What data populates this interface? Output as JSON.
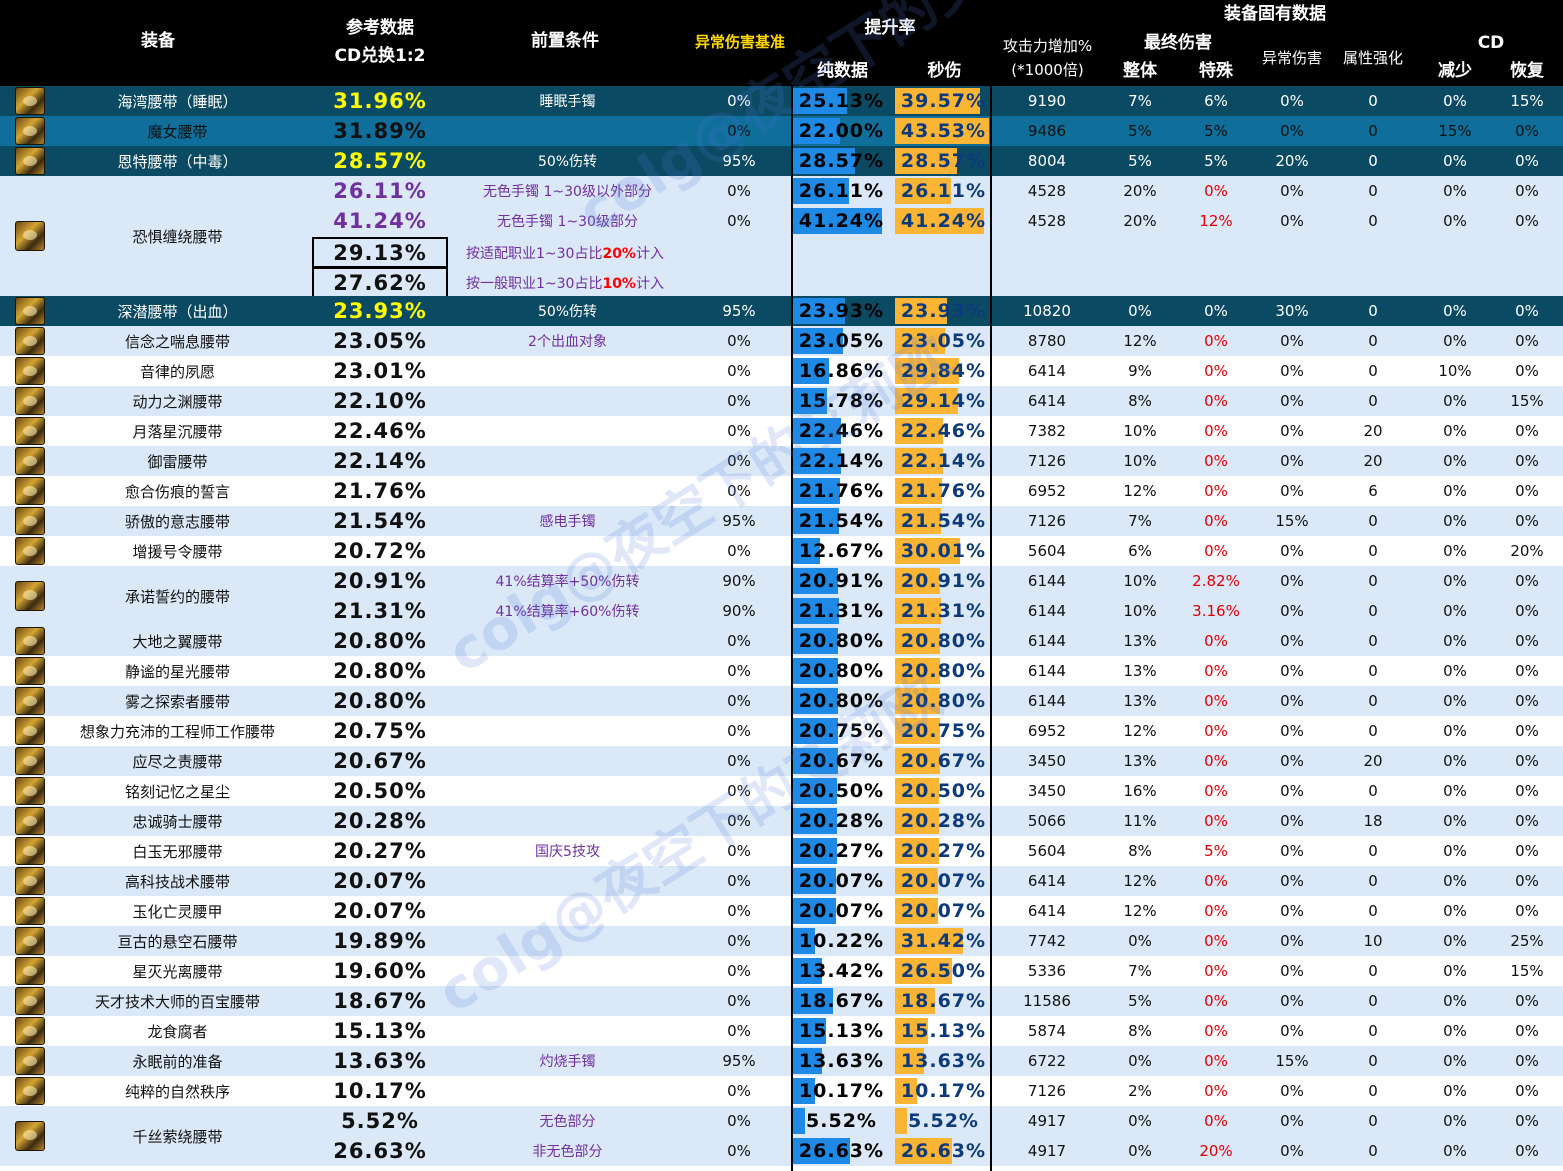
{
  "headers": {
    "equip": "装备",
    "ref_line1": "参考数据",
    "ref_line2": "CD兑换1:2",
    "pre": "前置条件",
    "abn_base": "异常伤害基准",
    "boost": "提升率",
    "pure": "纯数据",
    "sec": "秒伤",
    "atk_line1": "攻击力增加%",
    "atk_line2": "(*1000倍)",
    "inherent": "装备固有数据",
    "final": "最终伤害",
    "overall": "整体",
    "special": "特殊",
    "abn_dmg": "异常伤害",
    "elem": "属性强化",
    "cd": "CD",
    "cd_reduce": "减少",
    "cd_recover": "恢复"
  },
  "rows": [
    {
      "name": "海湾腰带（睡眠）",
      "ref": "31.96%",
      "cond": "睡眠手镯",
      "abn": "0%",
      "pure": "25.13%",
      "sec": "39.57%",
      "pure_v": 25.13,
      "sec_v": 39.57,
      "atk": "9190",
      "overall": "7%",
      "special": "6%",
      "abdmg": "0%",
      "elem": "0",
      "cdr": "0%",
      "rec": "15%",
      "style": "dark"
    },
    {
      "name": "魔女腰带",
      "ref": "31.89%",
      "cond": "",
      "abn": "0%",
      "pure": "22.00%",
      "sec": "43.53%",
      "pure_v": 22.0,
      "sec_v": 43.53,
      "atk": "9486",
      "overall": "5%",
      "special": "5%",
      "abdmg": "0%",
      "elem": "0",
      "cdr": "15%",
      "rec": "0%",
      "style": "mid"
    },
    {
      "name": "恩特腰带（中毒）",
      "ref": "28.57%",
      "cond": "50%伤转",
      "abn": "95%",
      "pure": "28.57%",
      "sec": "28.57%",
      "pure_v": 28.57,
      "sec_v": 28.57,
      "atk": "8004",
      "overall": "5%",
      "special": "5%",
      "abdmg": "20%",
      "elem": "0",
      "cdr": "0%",
      "rec": "0%",
      "style": "dark"
    }
  ],
  "group_kongju": {
    "name": "恐惧缠绕腰带",
    "sub": [
      {
        "ref": "26.11%",
        "cond": "无色手镯 1~30级以外部分",
        "abn": "0%",
        "pure": "26.11%",
        "sec": "26.11%",
        "pure_v": 26.11,
        "sec_v": 26.11,
        "atk": "4528",
        "overall": "20%",
        "special": "0%",
        "abdmg": "0%",
        "elem": "0",
        "cdr": "0%",
        "rec": "0%"
      },
      {
        "ref": "41.24%",
        "cond": "无色手镯 1~30级部分",
        "abn": "0%",
        "pure": "41.24%",
        "sec": "41.24%",
        "pure_v": 41.24,
        "sec_v": 41.24,
        "atk": "4528",
        "overall": "20%",
        "special": "12%",
        "abdmg": "0%",
        "elem": "0",
        "cdr": "0%",
        "rec": "0%"
      }
    ],
    "boxed": [
      {
        "val": "29.13%",
        "note_pre": "按适配职业1~30占比",
        "note_bold": "20%",
        "note_post": "计入"
      },
      {
        "val": "27.62%",
        "note_pre": "按一般职业1~30占比",
        "note_bold": "10%",
        "note_post": "计入"
      }
    ]
  },
  "rows2": [
    {
      "name": "深潜腰带（出血）",
      "ref": "23.93%",
      "cond": "50%伤转",
      "abn": "95%",
      "pure": "23.93%",
      "sec": "23.93%",
      "pure_v": 23.93,
      "sec_v": 23.93,
      "atk": "10820",
      "overall": "0%",
      "special": "0%",
      "abdmg": "30%",
      "elem": "0",
      "cdr": "0%",
      "rec": "0%",
      "style": "dark"
    },
    {
      "name": "信念之喘息腰带",
      "ref": "23.05%",
      "cond": "2个出血对象",
      "abn": "0%",
      "pure": "23.05%",
      "sec": "23.05%",
      "pure_v": 23.05,
      "sec_v": 23.05,
      "atk": "8780",
      "overall": "12%",
      "special": "0%",
      "abdmg": "0%",
      "elem": "0",
      "cdr": "0%",
      "rec": "0%",
      "style": "light"
    },
    {
      "name": "音律的夙愿",
      "ref": "23.01%",
      "cond": "",
      "abn": "0%",
      "pure": "16.86%",
      "sec": "29.84%",
      "pure_v": 16.86,
      "sec_v": 29.84,
      "atk": "6414",
      "overall": "9%",
      "special": "0%",
      "abdmg": "0%",
      "elem": "0",
      "cdr": "10%",
      "rec": "0%",
      "style": "white"
    },
    {
      "name": "动力之渊腰带",
      "ref": "22.10%",
      "cond": "",
      "abn": "0%",
      "pure": "15.78%",
      "sec": "29.14%",
      "pure_v": 15.78,
      "sec_v": 29.14,
      "atk": "6414",
      "overall": "8%",
      "special": "0%",
      "abdmg": "0%",
      "elem": "0",
      "cdr": "0%",
      "rec": "15%",
      "style": "light"
    },
    {
      "name": "月落星沉腰带",
      "ref": "22.46%",
      "cond": "",
      "abn": "0%",
      "pure": "22.46%",
      "sec": "22.46%",
      "pure_v": 22.46,
      "sec_v": 22.46,
      "atk": "7382",
      "overall": "10%",
      "special": "0%",
      "abdmg": "0%",
      "elem": "20",
      "cdr": "0%",
      "rec": "0%",
      "style": "white"
    },
    {
      "name": "御雷腰带",
      "ref": "22.14%",
      "cond": "",
      "abn": "0%",
      "pure": "22.14%",
      "sec": "22.14%",
      "pure_v": 22.14,
      "sec_v": 22.14,
      "atk": "7126",
      "overall": "10%",
      "special": "0%",
      "abdmg": "0%",
      "elem": "20",
      "cdr": "0%",
      "rec": "0%",
      "style": "light"
    },
    {
      "name": "愈合伤痕的誓言",
      "ref": "21.76%",
      "cond": "",
      "abn": "0%",
      "pure": "21.76%",
      "sec": "21.76%",
      "pure_v": 21.76,
      "sec_v": 21.76,
      "atk": "6952",
      "overall": "12%",
      "special": "0%",
      "abdmg": "0%",
      "elem": "6",
      "cdr": "0%",
      "rec": "0%",
      "style": "white"
    },
    {
      "name": "骄傲的意志腰带",
      "ref": "21.54%",
      "cond": "感电手镯",
      "abn": "95%",
      "pure": "21.54%",
      "sec": "21.54%",
      "pure_v": 21.54,
      "sec_v": 21.54,
      "atk": "7126",
      "overall": "7%",
      "special": "0%",
      "abdmg": "15%",
      "elem": "0",
      "cdr": "0%",
      "rec": "0%",
      "style": "light"
    },
    {
      "name": "增援号令腰带",
      "ref": "20.72%",
      "cond": "",
      "abn": "0%",
      "pure": "12.67%",
      "sec": "30.01%",
      "pure_v": 12.67,
      "sec_v": 30.01,
      "atk": "5604",
      "overall": "6%",
      "special": "0%",
      "abdmg": "0%",
      "elem": "0",
      "cdr": "0%",
      "rec": "20%",
      "style": "white"
    }
  ],
  "group_chengnuo": {
    "name": "承诺誓约的腰带",
    "sub": [
      {
        "ref": "20.91%",
        "cond": "41%结算率+50%伤转",
        "abn": "90%",
        "pure": "20.91%",
        "sec": "20.91%",
        "pure_v": 20.91,
        "sec_v": 20.91,
        "atk": "6144",
        "overall": "10%",
        "special": "2.82%",
        "abdmg": "0%",
        "elem": "0",
        "cdr": "0%",
        "rec": "0%"
      },
      {
        "ref": "21.31%",
        "cond": "41%结算率+60%伤转",
        "abn": "90%",
        "pure": "21.31%",
        "sec": "21.31%",
        "pure_v": 21.31,
        "sec_v": 21.31,
        "atk": "6144",
        "overall": "10%",
        "special": "3.16%",
        "abdmg": "0%",
        "elem": "0",
        "cdr": "0%",
        "rec": "0%"
      }
    ]
  },
  "rows3": [
    {
      "name": "大地之翼腰带",
      "ref": "20.80%",
      "cond": "",
      "abn": "0%",
      "pure": "20.80%",
      "sec": "20.80%",
      "pure_v": 20.8,
      "sec_v": 20.8,
      "atk": "6144",
      "overall": "13%",
      "special": "0%",
      "abdmg": "0%",
      "elem": "0",
      "cdr": "0%",
      "rec": "0%",
      "style": "light"
    },
    {
      "name": "静谧的星光腰带",
      "ref": "20.80%",
      "cond": "",
      "abn": "0%",
      "pure": "20.80%",
      "sec": "20.80%",
      "pure_v": 20.8,
      "sec_v": 20.8,
      "atk": "6144",
      "overall": "13%",
      "special": "0%",
      "abdmg": "0%",
      "elem": "0",
      "cdr": "0%",
      "rec": "0%",
      "style": "white"
    },
    {
      "name": "雾之探索者腰带",
      "ref": "20.80%",
      "cond": "",
      "abn": "0%",
      "pure": "20.80%",
      "sec": "20.80%",
      "pure_v": 20.8,
      "sec_v": 20.8,
      "atk": "6144",
      "overall": "13%",
      "special": "0%",
      "abdmg": "0%",
      "elem": "0",
      "cdr": "0%",
      "rec": "0%",
      "style": "light"
    },
    {
      "name": "想象力充沛的工程师工作腰带",
      "ref": "20.75%",
      "cond": "",
      "abn": "0%",
      "pure": "20.75%",
      "sec": "20.75%",
      "pure_v": 20.75,
      "sec_v": 20.75,
      "atk": "6952",
      "overall": "12%",
      "special": "0%",
      "abdmg": "0%",
      "elem": "0",
      "cdr": "0%",
      "rec": "0%",
      "style": "white"
    },
    {
      "name": "应尽之责腰带",
      "ref": "20.67%",
      "cond": "",
      "abn": "0%",
      "pure": "20.67%",
      "sec": "20.67%",
      "pure_v": 20.67,
      "sec_v": 20.67,
      "atk": "3450",
      "overall": "13%",
      "special": "0%",
      "abdmg": "0%",
      "elem": "20",
      "cdr": "0%",
      "rec": "0%",
      "style": "light"
    },
    {
      "name": "铭刻记忆之星尘",
      "ref": "20.50%",
      "cond": "",
      "abn": "0%",
      "pure": "20.50%",
      "sec": "20.50%",
      "pure_v": 20.5,
      "sec_v": 20.5,
      "atk": "3450",
      "overall": "16%",
      "special": "0%",
      "abdmg": "0%",
      "elem": "0",
      "cdr": "0%",
      "rec": "0%",
      "style": "white"
    },
    {
      "name": "忠诚骑士腰带",
      "ref": "20.28%",
      "cond": "",
      "abn": "0%",
      "pure": "20.28%",
      "sec": "20.28%",
      "pure_v": 20.28,
      "sec_v": 20.28,
      "atk": "5066",
      "overall": "11%",
      "special": "0%",
      "abdmg": "0%",
      "elem": "18",
      "cdr": "0%",
      "rec": "0%",
      "style": "light"
    },
    {
      "name": "白玉无邪腰带",
      "ref": "20.27%",
      "cond": "国庆5技攻",
      "abn": "0%",
      "pure": "20.27%",
      "sec": "20.27%",
      "pure_v": 20.27,
      "sec_v": 20.27,
      "atk": "5604",
      "overall": "8%",
      "special": "5%",
      "abdmg": "0%",
      "elem": "0",
      "cdr": "0%",
      "rec": "0%",
      "style": "white"
    },
    {
      "name": "高科技战术腰带",
      "ref": "20.07%",
      "cond": "",
      "abn": "0%",
      "pure": "20.07%",
      "sec": "20.07%",
      "pure_v": 20.07,
      "sec_v": 20.07,
      "atk": "6414",
      "overall": "12%",
      "special": "0%",
      "abdmg": "0%",
      "elem": "0",
      "cdr": "0%",
      "rec": "0%",
      "style": "light"
    },
    {
      "name": "玉化亡灵腰甲",
      "ref": "20.07%",
      "cond": "",
      "abn": "0%",
      "pure": "20.07%",
      "sec": "20.07%",
      "pure_v": 20.07,
      "sec_v": 20.07,
      "atk": "6414",
      "overall": "12%",
      "special": "0%",
      "abdmg": "0%",
      "elem": "0",
      "cdr": "0%",
      "rec": "0%",
      "style": "white"
    },
    {
      "name": "亘古的悬空石腰带",
      "ref": "19.89%",
      "cond": "",
      "abn": "0%",
      "pure": "10.22%",
      "sec": "31.42%",
      "pure_v": 10.22,
      "sec_v": 31.42,
      "atk": "7742",
      "overall": "0%",
      "special": "0%",
      "abdmg": "0%",
      "elem": "10",
      "cdr": "0%",
      "rec": "25%",
      "style": "light"
    },
    {
      "name": "星灭光离腰带",
      "ref": "19.60%",
      "cond": "",
      "abn": "0%",
      "pure": "13.42%",
      "sec": "26.50%",
      "pure_v": 13.42,
      "sec_v": 26.5,
      "atk": "5336",
      "overall": "7%",
      "special": "0%",
      "abdmg": "0%",
      "elem": "0",
      "cdr": "0%",
      "rec": "15%",
      "style": "white"
    },
    {
      "name": "天才技术大师的百宝腰带",
      "ref": "18.67%",
      "cond": "",
      "abn": "0%",
      "pure": "18.67%",
      "sec": "18.67%",
      "pure_v": 18.67,
      "sec_v": 18.67,
      "atk": "11586",
      "overall": "5%",
      "special": "0%",
      "abdmg": "0%",
      "elem": "0",
      "cdr": "0%",
      "rec": "0%",
      "style": "light"
    },
    {
      "name": "龙食腐者",
      "ref": "15.13%",
      "cond": "",
      "abn": "0%",
      "pure": "15.13%",
      "sec": "15.13%",
      "pure_v": 15.13,
      "sec_v": 15.13,
      "atk": "5874",
      "overall": "8%",
      "special": "0%",
      "abdmg": "0%",
      "elem": "0",
      "cdr": "0%",
      "rec": "0%",
      "style": "white"
    },
    {
      "name": "永眠前的准备",
      "ref": "13.63%",
      "cond": "灼烧手镯",
      "abn": "95%",
      "pure": "13.63%",
      "sec": "13.63%",
      "pure_v": 13.63,
      "sec_v": 13.63,
      "atk": "6722",
      "overall": "0%",
      "special": "0%",
      "abdmg": "15%",
      "elem": "0",
      "cdr": "0%",
      "rec": "0%",
      "style": "light"
    },
    {
      "name": "纯粹的自然秩序",
      "ref": "10.17%",
      "cond": "",
      "abn": "0%",
      "pure": "10.17%",
      "sec": "10.17%",
      "pure_v": 10.17,
      "sec_v": 10.17,
      "atk": "7126",
      "overall": "2%",
      "special": "0%",
      "abdmg": "0%",
      "elem": "0",
      "cdr": "0%",
      "rec": "0%",
      "style": "white"
    }
  ],
  "group_qiansi": {
    "name": "千丝萦绕腰带",
    "sub": [
      {
        "ref": "5.52%",
        "cond": "无色部分",
        "abn": "0%",
        "pure": "5.52%",
        "sec": "5.52%",
        "pure_v": 5.52,
        "sec_v": 5.52,
        "atk": "4917",
        "overall": "0%",
        "special": "0%",
        "abdmg": "0%",
        "elem": "0",
        "cdr": "0%",
        "rec": "0%"
      },
      {
        "ref": "26.63%",
        "cond": "非无色部分",
        "abn": "0%",
        "pure": "26.63%",
        "sec": "26.63%",
        "pure_v": 26.63,
        "sec_v": 26.63,
        "atk": "4917",
        "overall": "0%",
        "special": "20%",
        "abdmg": "0%",
        "elem": "0",
        "cdr": "0%",
        "rec": "0%"
      }
    ]
  },
  "watermark": "colg@夜空下的艾莉欧",
  "colors": {
    "dark_row": "#0b4a63",
    "mid_row": "#0f6e9a",
    "light_row": "#dbe8f7",
    "blue_bar": "#1e8ae6",
    "orange_bar": "#fbb535",
    "ref_yellow": "#ffff00",
    "condition_purple": "#7030a0",
    "red": "#e00000"
  }
}
